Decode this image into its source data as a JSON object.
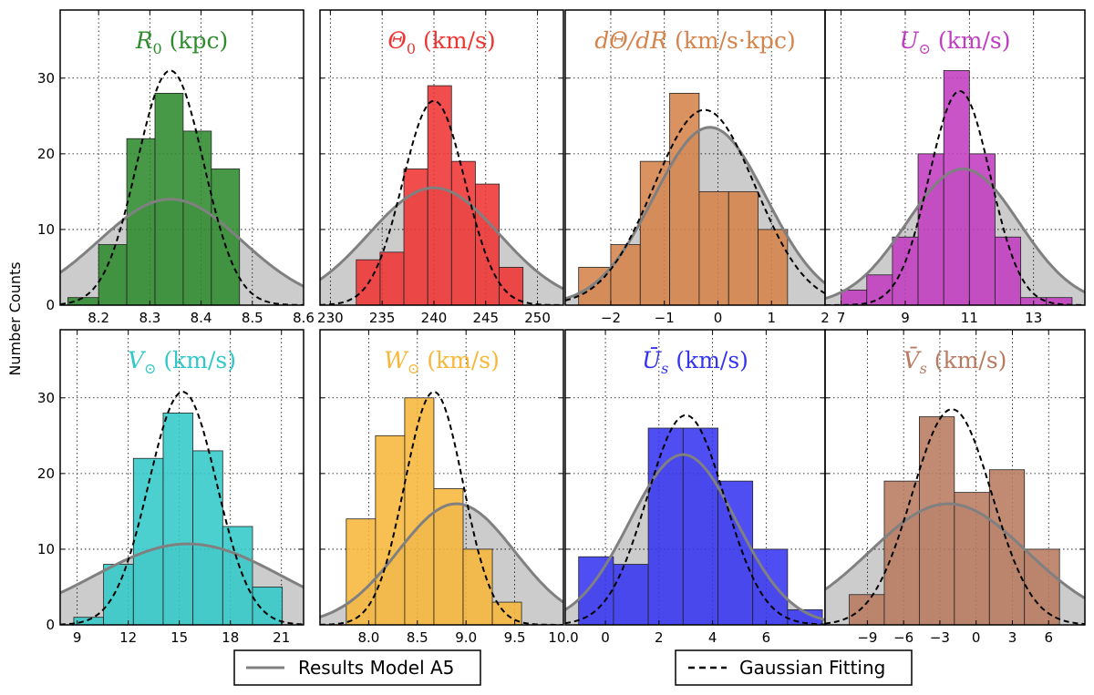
{
  "figure": {
    "ylabel": "Number Counts",
    "legend": [
      {
        "label": "Results Model A5",
        "style": "solid",
        "color": "#808080"
      },
      {
        "label": "Gaussian Fitting",
        "style": "dashed",
        "color": "#000000"
      }
    ]
  },
  "chart_data": [
    {
      "type": "bar",
      "title_main": "R",
      "title_sub": "0",
      "title_unit": " (kpc)",
      "color": "#2e8b2e",
      "xlim": [
        8.125,
        8.6
      ],
      "ylim": [
        0,
        39
      ],
      "xticks": [
        8.2,
        8.3,
        8.4,
        8.5,
        8.6
      ],
      "xtick_labels": [
        "8.2",
        "8.3",
        "8.4",
        "8.5",
        "8.6"
      ],
      "yticks": [
        0,
        10,
        20,
        30
      ],
      "ytick_labels": [
        "0",
        "10",
        "20",
        "30"
      ],
      "bin_edges": [
        8.14,
        8.2,
        8.255,
        8.31,
        8.365,
        8.42,
        8.475
      ],
      "counts": [
        1,
        8,
        22,
        28,
        23,
        18
      ],
      "model_curve": {
        "mu": 8.34,
        "sigma": 0.14,
        "peak": 14
      },
      "gauss_fit": {
        "mu": 8.34,
        "sigma": 0.065,
        "peak": 31
      }
    },
    {
      "type": "bar",
      "title_main": "Θ",
      "title_sub": "0",
      "title_unit": " (km/s)",
      "color": "#ef3434",
      "xlim": [
        229,
        252.5
      ],
      "ylim": [
        0,
        39
      ],
      "xticks": [
        230,
        235,
        240,
        245,
        250
      ],
      "xtick_labels": [
        "230",
        "235",
        "240",
        "245",
        "250"
      ],
      "yticks": [
        0,
        10,
        20,
        30
      ],
      "ytick_labels": [
        "0",
        "10",
        "20",
        "30"
      ],
      "bin_edges": [
        232.5,
        234.8,
        237.1,
        239.4,
        241.7,
        244.0,
        246.3,
        248.6
      ],
      "counts": [
        6,
        7,
        18,
        29,
        19,
        16,
        5
      ],
      "model_curve": {
        "mu": 240,
        "sigma": 6.3,
        "peak": 15.5
      },
      "gauss_fit": {
        "mu": 240,
        "sigma": 3.0,
        "peak": 27
      }
    },
    {
      "type": "bar",
      "title_main": "dΘ/dR",
      "title_sub": "",
      "title_unit": " (km/s·kpc)",
      "color": "#d4834a",
      "xlim": [
        -2.85,
        2.0
      ],
      "ylim": [
        0,
        39
      ],
      "xticks": [
        -2,
        -1,
        0,
        1,
        2
      ],
      "xtick_labels": [
        "−2",
        "−1",
        "0",
        "1",
        "2"
      ],
      "yticks": [
        0,
        10,
        20,
        30
      ],
      "ytick_labels": [
        "0",
        "10",
        "20",
        "30"
      ],
      "bin_edges": [
        -2.6,
        -2.0,
        -1.45,
        -0.9,
        -0.35,
        0.2,
        0.75,
        1.3,
        1.85
      ],
      "counts": [
        5,
        8,
        19,
        28,
        15,
        15,
        10,
        0
      ],
      "model_curve": {
        "mu": -0.15,
        "sigma": 1.05,
        "peak": 23.5
      },
      "gauss_fit": {
        "mu": -0.25,
        "sigma": 0.95,
        "peak": 25.8
      }
    },
    {
      "type": "bar",
      "title_main": "U",
      "title_sub": "⊙",
      "title_unit": " (km/s)",
      "color": "#c03cc0",
      "xlim": [
        6.5,
        14.6
      ],
      "ylim": [
        0,
        39
      ],
      "xticks": [
        7,
        9,
        11,
        13
      ],
      "xtick_labels": [
        "7",
        "9",
        "11",
        "13"
      ],
      "yticks": [
        0,
        10,
        20,
        30
      ],
      "ytick_labels": [
        "0",
        "10",
        "20",
        "30"
      ],
      "bin_edges": [
        7.0,
        7.8,
        8.6,
        9.4,
        10.2,
        11.0,
        11.8,
        12.6,
        13.4,
        14.2
      ],
      "counts": [
        2,
        4,
        9,
        20,
        31,
        20,
        9,
        1,
        1
      ],
      "model_curve": {
        "mu": 10.8,
        "sigma": 1.75,
        "peak": 18
      },
      "gauss_fit": {
        "mu": 10.7,
        "sigma": 0.95,
        "peak": 28.3
      }
    },
    {
      "type": "bar",
      "title_main": "V",
      "title_sub": "⊙",
      "title_unit": " (km/s)",
      "color": "#33c8c8",
      "xlim": [
        8.0,
        22.3
      ],
      "ylim": [
        0,
        39
      ],
      "xticks": [
        9,
        12,
        15,
        18,
        21
      ],
      "xtick_labels": [
        "9",
        "12",
        "15",
        "18",
        "21"
      ],
      "yticks": [
        0,
        10,
        20,
        30
      ],
      "ytick_labels": [
        "0",
        "10",
        "20",
        "30"
      ],
      "bin_edges": [
        8.8,
        10.55,
        12.3,
        14.05,
        15.8,
        17.55,
        19.3,
        21.05
      ],
      "counts": [
        1,
        8,
        22,
        28,
        23,
        13,
        5
      ],
      "model_curve": {
        "mu": 15.5,
        "sigma": 5.5,
        "peak": 10.7
      },
      "gauss_fit": {
        "mu": 15.2,
        "sigma": 2.0,
        "peak": 30.8
      }
    },
    {
      "type": "bar",
      "title_main": "W",
      "title_sub": "⊙",
      "title_unit": " (km/s)",
      "color": "#f7b73a",
      "xlim": [
        7.5,
        10.0
      ],
      "ylim": [
        0,
        39
      ],
      "xticks": [
        8.0,
        8.5,
        9.0,
        9.5,
        10.0
      ],
      "xtick_labels": [
        "8.0",
        "8.5",
        "9.0",
        "9.5",
        "10.0"
      ],
      "yticks": [
        0,
        10,
        20,
        30
      ],
      "ytick_labels": [
        "0",
        "10",
        "20",
        "30"
      ],
      "bin_edges": [
        7.77,
        8.07,
        8.37,
        8.67,
        8.97,
        9.27,
        9.57,
        9.87
      ],
      "counts": [
        14,
        25,
        30,
        18,
        10,
        3,
        0
      ],
      "model_curve": {
        "mu": 8.9,
        "sigma": 0.6,
        "peak": 16
      },
      "gauss_fit": {
        "mu": 8.67,
        "sigma": 0.3,
        "peak": 30.8
      }
    },
    {
      "type": "bar",
      "title_main": "Ū",
      "title_sub": "s",
      "title_unit": " (km/s)",
      "color": "#3535f0",
      "xlim": [
        -1.5,
        8.2
      ],
      "ylim": [
        0,
        39
      ],
      "xticks": [
        0,
        2,
        4,
        6
      ],
      "xtick_labels": [
        "0",
        "2",
        "4",
        "6"
      ],
      "yticks": [
        0,
        10,
        20,
        30
      ],
      "ytick_labels": [
        "0",
        "10",
        "20",
        "30"
      ],
      "bin_edges": [
        -1.0,
        0.3,
        1.6,
        2.9,
        4.2,
        5.5,
        6.8,
        8.1
      ],
      "counts": [
        9,
        8,
        26,
        26,
        19,
        10,
        2
      ],
      "model_curve": {
        "mu": 2.9,
        "sigma": 2.0,
        "peak": 22.5
      },
      "gauss_fit": {
        "mu": 3.0,
        "sigma": 1.45,
        "peak": 27.7
      }
    },
    {
      "type": "bar",
      "title_main": "V̄",
      "title_sub": "s",
      "title_unit": " (km/s)",
      "color": "#b87a60",
      "xlim": [
        -12.5,
        9.0
      ],
      "ylim": [
        0,
        39
      ],
      "xticks": [
        -9,
        -6,
        -3,
        0,
        3,
        6
      ],
      "xtick_labels": [
        "−9",
        "−6",
        "−3",
        "0",
        "3",
        "6"
      ],
      "yticks": [
        0,
        10,
        20,
        30
      ],
      "ytick_labels": [
        "0",
        "10",
        "20",
        "30"
      ],
      "bin_edges": [
        -10.5,
        -7.6,
        -4.7,
        -1.8,
        1.1,
        4.0,
        6.9
      ],
      "counts": [
        4,
        19,
        27.5,
        17.5,
        20.5,
        10
      ],
      "model_curve": {
        "mu": -2.3,
        "sigma": 6.5,
        "peak": 16
      },
      "gauss_fit": {
        "mu": -2.0,
        "sigma": 3.3,
        "peak": 28.5
      }
    }
  ]
}
